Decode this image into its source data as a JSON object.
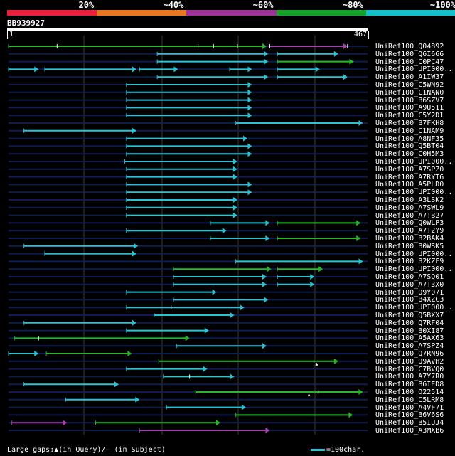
{
  "scale": {
    "labels": [
      "20%",
      "~40%",
      "~60%",
      "~80%",
      "~100%"
    ],
    "colors": [
      "#e8203a",
      "#e87622",
      "#9c3197",
      "#17a329",
      "#15c0cc"
    ]
  },
  "query": {
    "id": "BB939927",
    "start": "1",
    "end": "467",
    "length": 467
  },
  "colors": {
    "cyan": "#2ac2d2",
    "green": "#29b52b",
    "purple": "#a341ae",
    "track": "#0d1d52",
    "grid": "#3a3a3a"
  },
  "hits": [
    {
      "name": "UniRef100_Q04892",
      "segments": [
        {
          "s": 1,
          "e": 336,
          "c": "green"
        },
        {
          "s": 340,
          "e": 441,
          "c": "purple"
        }
      ],
      "marks": [
        64,
        247,
        267,
        298,
        340,
        441
      ]
    },
    {
      "name": "UniRef100_Q6I666",
      "segments": [
        {
          "s": 194,
          "e": 338,
          "c": "cyan"
        },
        {
          "s": 350,
          "e": 429,
          "c": "cyan"
        }
      ],
      "marks": []
    },
    {
      "name": "UniRef100_C0PC47",
      "segments": [
        {
          "s": 194,
          "e": 338,
          "c": "cyan"
        },
        {
          "s": 350,
          "e": 449,
          "c": "green"
        }
      ],
      "marks": []
    },
    {
      "name": "UniRef100_UPI000..",
      "segments": [
        {
          "s": 1,
          "e": 40,
          "c": "cyan"
        },
        {
          "s": 48,
          "e": 167,
          "c": "cyan"
        },
        {
          "s": 171,
          "e": 221,
          "c": "cyan"
        },
        {
          "s": 288,
          "e": 317,
          "c": "cyan"
        },
        {
          "s": 350,
          "e": 405,
          "c": "cyan"
        }
      ],
      "marks": []
    },
    {
      "name": "UniRef100_A1IW37",
      "segments": [
        {
          "s": 194,
          "e": 338,
          "c": "cyan"
        },
        {
          "s": 350,
          "e": 441,
          "c": "cyan"
        }
      ],
      "marks": []
    },
    {
      "name": "UniRef100_C5WN92",
      "segments": [
        {
          "s": 154,
          "e": 317,
          "c": "cyan"
        }
      ],
      "marks": []
    },
    {
      "name": "UniRef100_C1NAN0",
      "segments": [
        {
          "s": 154,
          "e": 317,
          "c": "cyan"
        }
      ],
      "marks": []
    },
    {
      "name": "UniRef100_B6SZV7",
      "segments": [
        {
          "s": 154,
          "e": 317,
          "c": "cyan"
        }
      ],
      "marks": []
    },
    {
      "name": "UniRef100_A9U511",
      "segments": [
        {
          "s": 154,
          "e": 317,
          "c": "cyan"
        }
      ],
      "marks": []
    },
    {
      "name": "UniRef100_C5Y2D1",
      "segments": [
        {
          "s": 154,
          "e": 317,
          "c": "cyan"
        }
      ],
      "marks": []
    },
    {
      "name": "UniRef100_B7FKH8",
      "segments": [
        {
          "s": 296,
          "e": 461,
          "c": "cyan"
        }
      ],
      "marks": []
    },
    {
      "name": "UniRef100_C1NAM9",
      "segments": [
        {
          "s": 21,
          "e": 167,
          "c": "cyan"
        }
      ],
      "marks": []
    },
    {
      "name": "UniRef100_A8NF35",
      "segments": [
        {
          "s": 154,
          "e": 311,
          "c": "cyan"
        }
      ],
      "marks": []
    },
    {
      "name": "UniRef100_Q5BT04",
      "segments": [
        {
          "s": 154,
          "e": 317,
          "c": "cyan"
        }
      ],
      "marks": []
    },
    {
      "name": "UniRef100_C0H5M3",
      "segments": [
        {
          "s": 154,
          "e": 317,
          "c": "cyan"
        }
      ],
      "marks": []
    },
    {
      "name": "UniRef100_UPI000..",
      "segments": [
        {
          "s": 152,
          "e": 298,
          "c": "cyan"
        }
      ],
      "marks": []
    },
    {
      "name": "UniRef100_A7SPZ0",
      "segments": [
        {
          "s": 154,
          "e": 298,
          "c": "cyan"
        }
      ],
      "marks": []
    },
    {
      "name": "UniRef100_A7RYT6",
      "segments": [
        {
          "s": 154,
          "e": 298,
          "c": "cyan"
        }
      ],
      "marks": []
    },
    {
      "name": "UniRef100_A5PLD0",
      "segments": [
        {
          "s": 154,
          "e": 317,
          "c": "cyan"
        }
      ],
      "marks": []
    },
    {
      "name": "UniRef100_UPI000..",
      "segments": [
        {
          "s": 154,
          "e": 317,
          "c": "cyan"
        }
      ],
      "marks": []
    },
    {
      "name": "UniRef100_A3LSK2",
      "segments": [
        {
          "s": 154,
          "e": 298,
          "c": "cyan"
        }
      ],
      "marks": []
    },
    {
      "name": "UniRef100_A7SWL9",
      "segments": [
        {
          "s": 154,
          "e": 298,
          "c": "cyan"
        }
      ],
      "marks": []
    },
    {
      "name": "UniRef100_A7TB27",
      "segments": [
        {
          "s": 154,
          "e": 298,
          "c": "cyan"
        }
      ],
      "marks": []
    },
    {
      "name": "UniRef100_Q0WLP3",
      "segments": [
        {
          "s": 263,
          "e": 340,
          "c": "cyan"
        },
        {
          "s": 350,
          "e": 458,
          "c": "green"
        }
      ],
      "marks": []
    },
    {
      "name": "UniRef100_A7T2Y9",
      "segments": [
        {
          "s": 154,
          "e": 284,
          "c": "cyan"
        }
      ],
      "marks": []
    },
    {
      "name": "UniRef100_B2BAK4",
      "segments": [
        {
          "s": 263,
          "e": 340,
          "c": "cyan"
        },
        {
          "s": 350,
          "e": 458,
          "c": "green"
        }
      ],
      "marks": []
    },
    {
      "name": "UniRef100_B0WSK5",
      "segments": [
        {
          "s": 21,
          "e": 169,
          "c": "cyan"
        }
      ],
      "marks": []
    },
    {
      "name": "UniRef100_UPI000..",
      "segments": [
        {
          "s": 48,
          "e": 167,
          "c": "cyan"
        }
      ],
      "marks": []
    },
    {
      "name": "UniRef100_B2KZF9",
      "segments": [
        {
          "s": 296,
          "e": 461,
          "c": "cyan"
        }
      ],
      "marks": []
    },
    {
      "name": "UniRef100_UPI000..",
      "segments": [
        {
          "s": 215,
          "e": 342,
          "c": "green"
        },
        {
          "s": 350,
          "e": 409,
          "c": "green"
        }
      ],
      "marks": []
    },
    {
      "name": "UniRef100_A7SQ01",
      "segments": [
        {
          "s": 215,
          "e": 336,
          "c": "cyan"
        },
        {
          "s": 350,
          "e": 398,
          "c": "cyan"
        }
      ],
      "marks": []
    },
    {
      "name": "UniRef100_A7T3X0",
      "segments": [
        {
          "s": 215,
          "e": 336,
          "c": "cyan"
        },
        {
          "s": 350,
          "e": 398,
          "c": "cyan"
        }
      ],
      "marks": []
    },
    {
      "name": "UniRef100_Q9Y071",
      "segments": [
        {
          "s": 154,
          "e": 271,
          "c": "cyan"
        }
      ],
      "marks": []
    },
    {
      "name": "UniRef100_B4XZC3",
      "segments": [
        {
          "s": 215,
          "e": 338,
          "c": "cyan"
        }
      ],
      "marks": []
    },
    {
      "name": "UniRef100_UPI000..",
      "segments": [
        {
          "s": 154,
          "e": 307,
          "c": "cyan"
        }
      ],
      "marks": [
        212
      ]
    },
    {
      "name": "UniRef100_Q5BXX7",
      "segments": [
        {
          "s": 190,
          "e": 294,
          "c": "cyan"
        }
      ],
      "marks": []
    },
    {
      "name": "UniRef100_Q7RF04",
      "segments": [
        {
          "s": 21,
          "e": 167,
          "c": "cyan"
        }
      ],
      "marks": []
    },
    {
      "name": "UniRef100_B0XI87",
      "segments": [
        {
          "s": 154,
          "e": 261,
          "c": "cyan"
        }
      ],
      "marks": []
    },
    {
      "name": "UniRef100_A5AX63",
      "segments": [
        {
          "s": 9,
          "e": 236,
          "c": "green"
        }
      ],
      "marks": [
        40
      ]
    },
    {
      "name": "UniRef100_A7SPZ4",
      "segments": [
        {
          "s": 219,
          "e": 336,
          "c": "cyan"
        }
      ],
      "marks": []
    },
    {
      "name": "UniRef100_Q7RN96",
      "segments": [
        {
          "s": 1,
          "e": 40,
          "c": "cyan"
        },
        {
          "s": 50,
          "e": 161,
          "c": "green"
        }
      ],
      "marks": []
    },
    {
      "name": "UniRef100_Q9AVH2",
      "segments": [
        {
          "s": 196,
          "e": 429,
          "c": "green"
        }
      ],
      "marks": [],
      "gaps": [
        401
      ]
    },
    {
      "name": "UniRef100_C7BVQ0",
      "segments": [
        {
          "s": 154,
          "e": 259,
          "c": "cyan"
        }
      ],
      "marks": []
    },
    {
      "name": "UniRef100_A7Y7R0",
      "segments": [
        {
          "s": 202,
          "e": 294,
          "c": "cyan"
        }
      ],
      "marks": [
        236
      ]
    },
    {
      "name": "UniRef100_B6IED8",
      "segments": [
        {
          "s": 21,
          "e": 144,
          "c": "cyan"
        }
      ],
      "marks": []
    },
    {
      "name": "UniRef100_O22514",
      "segments": [
        {
          "s": 244,
          "e": 461,
          "c": "green"
        }
      ],
      "marks": [
        403
      ],
      "gaps": [
        391
      ]
    },
    {
      "name": "UniRef100_C5LRM8",
      "segments": [
        {
          "s": 75,
          "e": 171,
          "c": "cyan"
        }
      ],
      "marks": []
    },
    {
      "name": "UniRef100_A4VF71",
      "segments": [
        {
          "s": 206,
          "e": 309,
          "c": "cyan"
        }
      ],
      "marks": []
    },
    {
      "name": "UniRef100_B6V6S6",
      "segments": [
        {
          "s": 296,
          "e": 448,
          "c": "green"
        }
      ],
      "marks": []
    },
    {
      "name": "UniRef100_B5IUJ4",
      "segments": [
        {
          "s": 5,
          "e": 77,
          "c": "purple"
        },
        {
          "s": 114,
          "e": 276,
          "c": "green"
        }
      ],
      "marks": []
    },
    {
      "name": "UniRef100_A3MXB6",
      "segments": [
        {
          "s": 171,
          "e": 340,
          "c": "purple"
        }
      ],
      "marks": []
    }
  ],
  "legend": {
    "left": "Large gaps:▲(in Query)/— (in Subject)",
    "right": "=100char."
  }
}
